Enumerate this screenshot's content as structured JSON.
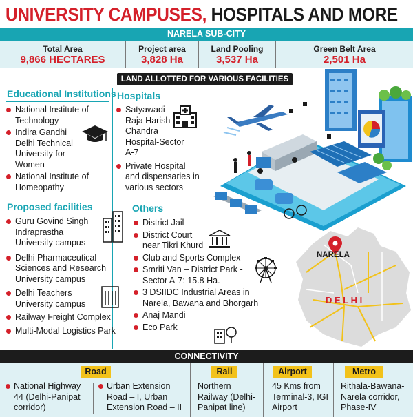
{
  "title": {
    "part1": "UNIVERSITY CAMPUSES,",
    "part2": " HOSPITALS AND MORE"
  },
  "subcity": "NARELA SUB-CITY",
  "stats": [
    {
      "label": "Total Area",
      "value": "9,866 HECTARES"
    },
    {
      "label": "Project area",
      "value": "3,828 Ha"
    },
    {
      "label": "Land Pooling",
      "value": "3,537 Ha"
    },
    {
      "label": "Green Belt Area",
      "value": "2,501 Ha"
    }
  ],
  "allotted_banner": "LAND ALLOTTED FOR VARIOUS FACILITIES",
  "educational": {
    "heading": "Educational Institutions",
    "items": [
      "National Institute of Technology",
      "Indira Gandhi Delhi Technical University for Women",
      "National Institute of Homeopathy"
    ]
  },
  "hospitals": {
    "heading": "Hospitals",
    "items": [
      "Satyawadi Raja Harish Chandra Hospital-Sector A-7",
      "Private Hospital and dispensaries in various sectors"
    ]
  },
  "proposed": {
    "heading": "Proposed facilities",
    "items": [
      "Guru Govind Singh Indraprastha University campus",
      "Delhi Pharmaceutical Sciences and Research University campus",
      "Delhi Teachers University campus",
      "Railway Freight Complex",
      "Multi-Modal Logistics Park"
    ]
  },
  "others": {
    "heading": "Others",
    "items": [
      "District Jail",
      "District Court near Tikri Khurd",
      "Club and Sports Complex",
      "Smriti Van – District Park - Sector A-7: 15.8 Ha.",
      "3 DSIIDC Industrial Areas in Narela, Bawana and Bhorgarh",
      "Anaj Mandi",
      "Eco Park"
    ]
  },
  "map": {
    "place": "NARELA",
    "region": "D E L H I"
  },
  "connectivity": {
    "heading": "CONNECTIVITY",
    "road": {
      "tag": "Road",
      "items": [
        "National Highway 44 (Delhi-Panipat corridor)",
        "Urban Extension Road – I, Urban Extension Road – II"
      ]
    },
    "rail": {
      "tag": "Rail",
      "text": "Northern Railway (Delhi-Panipat line)"
    },
    "airport": {
      "tag": "Airport",
      "text": "45 Kms from Terminal-3, IGI Airport"
    },
    "metro": {
      "tag": "Metro",
      "text": "Rithala-Bawana-Narela corridor, Phase-IV"
    }
  },
  "colors": {
    "accent": "#18a5b3",
    "highlight": "#d4202a",
    "tag": "#f2c21a",
    "panel": "#dff1f4"
  }
}
